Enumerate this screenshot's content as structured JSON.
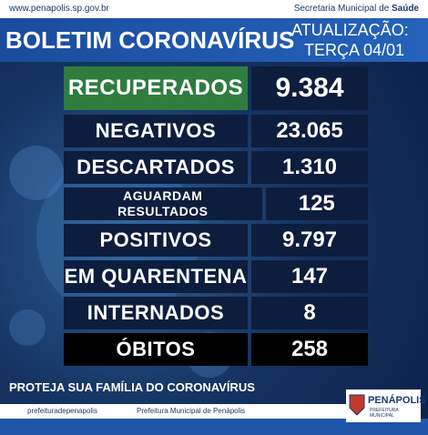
{
  "header": {
    "url": "www.penapolis.sp.gov.br",
    "department": "Secretaria Municipal de",
    "department_bold": "Saúde",
    "title": "BOLETIM CORONAVÍRUS",
    "update_label": "ATUALIZAÇÃO:",
    "update_date": "TERÇA 04/01"
  },
  "table": {
    "rows": [
      {
        "label": "RECUPERADOS",
        "value": "9.384"
      },
      {
        "label": "NEGATIVOS",
        "value": "23.065"
      },
      {
        "label": "DESCARTADOS",
        "value": "1.310"
      },
      {
        "label": "AGUARDAM RESULTADOS",
        "value": "125"
      },
      {
        "label": "POSITIVOS",
        "value": "9.797"
      },
      {
        "label": "EM QUARENTENA",
        "value": "147"
      },
      {
        "label": "INTERNADOS",
        "value": "8"
      },
      {
        "label": "ÓBITOS",
        "value": "258"
      }
    ]
  },
  "footer": {
    "slogan": "PROTEJA SUA FAMÍLIA DO CORONAVÍRUS",
    "instagram": "prefeituradepenapolis",
    "youtube": "Prefeitura Municipal de Penápolis",
    "logo_name": "PENÁPOLIS",
    "logo_sub": "PREFEITURA MUNICIPAL"
  }
}
